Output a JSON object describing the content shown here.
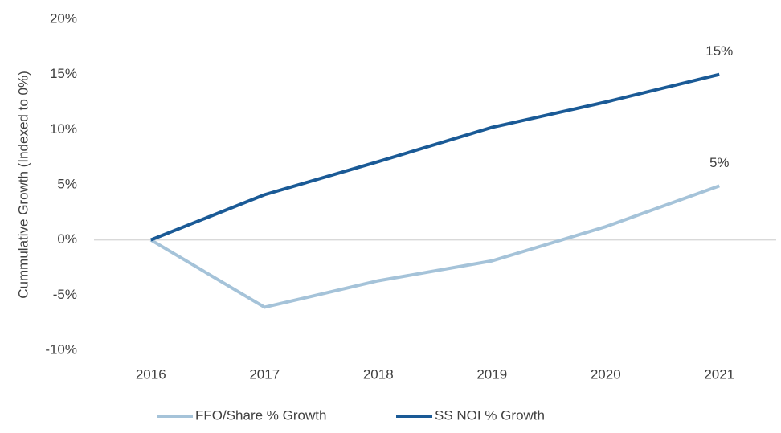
{
  "chart_data": {
    "type": "line",
    "y_label": "Cummulative Growth (Indexed to 0%)",
    "categories": [
      "2016",
      "2017",
      "2018",
      "2019",
      "2020",
      "2021"
    ],
    "series": [
      {
        "name": "FFO/Share % Growth",
        "color": "#a5c3d9",
        "values": [
          0,
          -6.1,
          -3.7,
          -1.9,
          1.2,
          4.9
        ],
        "value_labels": [
          null,
          null,
          null,
          null,
          null,
          "5%"
        ]
      },
      {
        "name": "SS NOI % Growth",
        "color": "#1a5a96",
        "values": [
          0,
          4.1,
          7.1,
          10.2,
          12.5,
          15.0
        ],
        "value_labels": [
          null,
          null,
          null,
          null,
          null,
          "15%"
        ]
      }
    ],
    "ylim": [
      -10,
      20
    ],
    "yticks": [
      {
        "value": -10,
        "label": "-10%"
      },
      {
        "value": -5,
        "label": "-5%"
      },
      {
        "value": 0,
        "label": "0%"
      },
      {
        "value": 5,
        "label": "5%"
      },
      {
        "value": 10,
        "label": "10%"
      },
      {
        "value": 15,
        "label": "15%"
      },
      {
        "value": 20,
        "label": "20%"
      }
    ],
    "legend": "bottom"
  }
}
